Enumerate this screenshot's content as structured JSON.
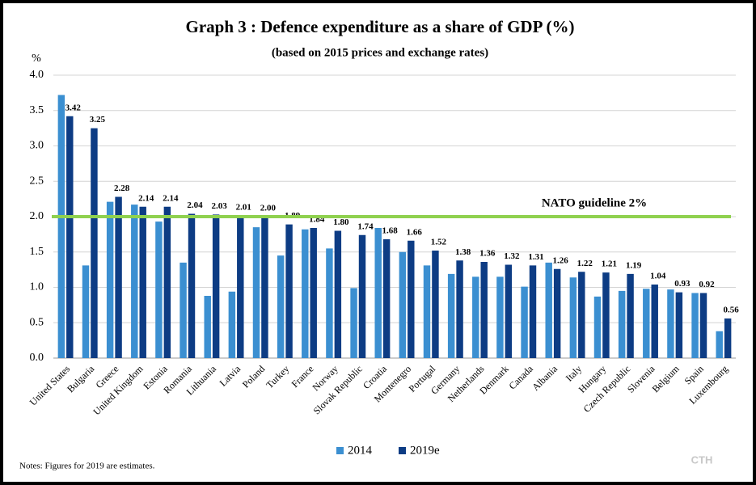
{
  "chart_data": {
    "type": "bar",
    "title": "Graph 3 : Defence expenditure as a share of GDP (%)",
    "subtitle": "(based on 2015 prices and exchange rates)",
    "y_label": "%",
    "categories": [
      "United States",
      "Bulgaria",
      "Greece",
      "United Kingdom",
      "Estonia",
      "Romania",
      "Lithuania",
      "Latvia",
      "Poland",
      "Turkey",
      "France",
      "Norway",
      "Slovak Republic",
      "Croatia",
      "Montenegro",
      "Portugal",
      "Germany",
      "Netherlands",
      "Denmark",
      "Canada",
      "Albania",
      "Italy",
      "Hungary",
      "Czech Republic",
      "Slovenia",
      "Belgium",
      "Spain",
      "Luxembourg"
    ],
    "series": [
      {
        "name": "2014",
        "color": "#3b8fd1",
        "values": [
          3.72,
          1.31,
          2.21,
          2.17,
          1.93,
          1.35,
          0.88,
          0.94,
          1.85,
          1.45,
          1.82,
          1.55,
          0.99,
          1.84,
          1.5,
          1.31,
          1.19,
          1.15,
          1.15,
          1.01,
          1.35,
          1.14,
          0.87,
          0.95,
          0.98,
          0.97,
          0.92,
          0.38
        ]
      },
      {
        "name": "2019e",
        "color": "#0d3c84",
        "values": [
          3.42,
          3.25,
          2.28,
          2.14,
          2.14,
          2.04,
          2.03,
          2.01,
          2.0,
          1.89,
          1.84,
          1.8,
          1.74,
          1.68,
          1.66,
          1.52,
          1.38,
          1.36,
          1.32,
          1.31,
          1.26,
          1.22,
          1.21,
          1.19,
          1.04,
          0.93,
          0.92,
          0.56
        ],
        "value_labels": [
          "3.42",
          "3.25",
          "2.28",
          "2.14",
          "2.14",
          "2.04",
          "2.03",
          "2.01",
          "2.00",
          "1.89",
          "1.84",
          "1.80",
          "1.74",
          "1.68",
          "1.66",
          "1.52",
          "1.38",
          "1.36",
          "1.32",
          "1.31",
          "1.26",
          "1.22",
          "1.21",
          "1.19",
          "1.04",
          "0.93",
          "0.92",
          "0.56"
        ]
      }
    ],
    "ylim": [
      0,
      4
    ],
    "yticks": [
      {
        "value": 0,
        "label": "0.0"
      },
      0.5,
      {
        "value": 1,
        "label": "1.0"
      },
      1.5,
      {
        "value": 2,
        "label": "2.0"
      },
      2.5,
      {
        "value": 3,
        "label": "3.0"
      },
      3.5,
      {
        "value": 4,
        "label": "4.0"
      }
    ],
    "grid": true,
    "reference_line": {
      "value": 2,
      "label": "NATO guideline 2%",
      "color": "#8fd14f"
    },
    "legend": "bottom",
    "notes": "Notes: Figures for 2019 are estimates.",
    "watermark": "CTH"
  }
}
